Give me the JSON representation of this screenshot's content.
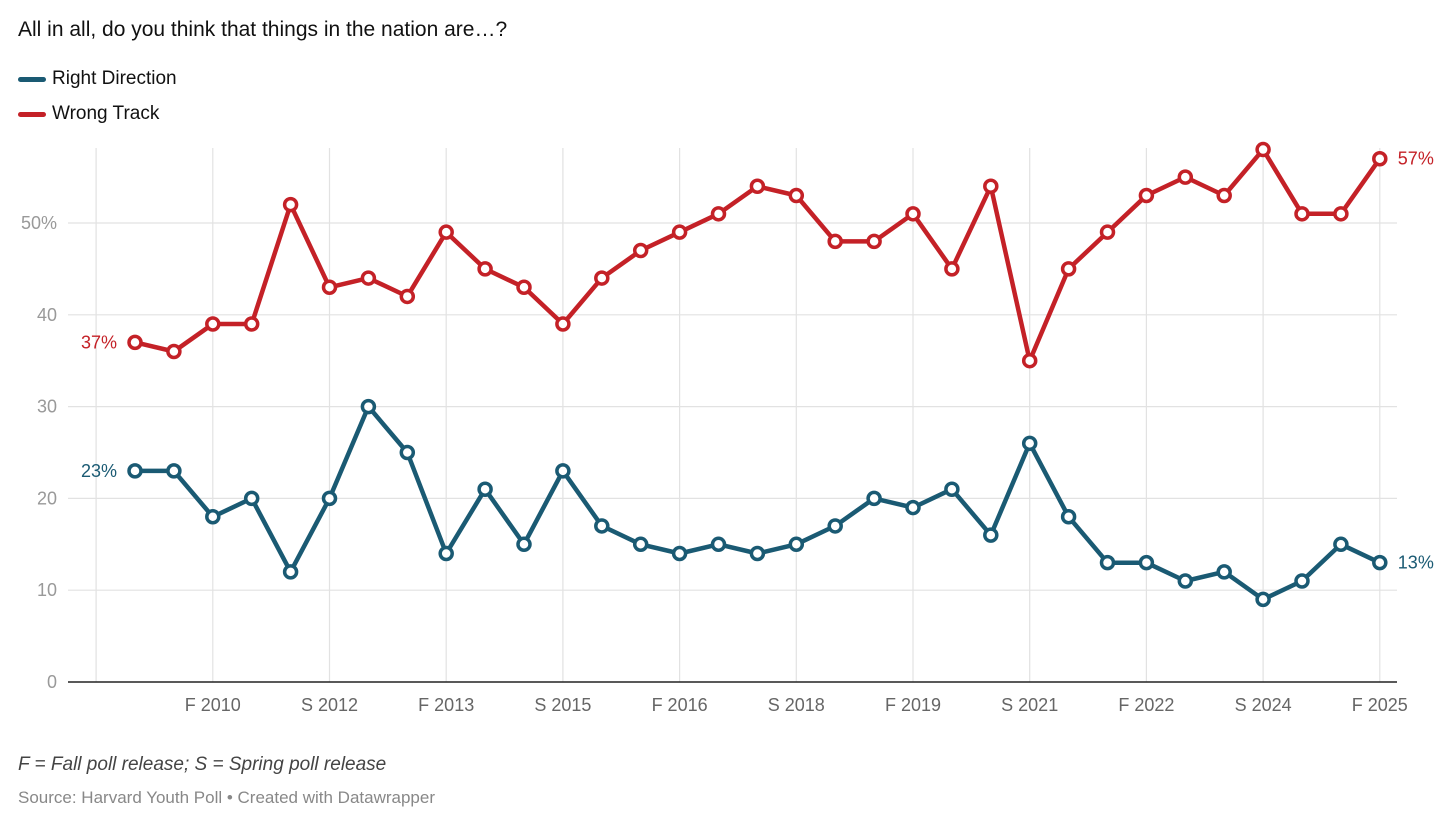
{
  "chart_data": {
    "type": "line",
    "title": "All in all, do you think that things in the nation are…?",
    "note": "F = Fall poll release; S = Spring poll release",
    "source": "Source: Harvard Youth Poll • Created with Datawrapper",
    "ylim": [
      0,
      58
    ],
    "yticks": [
      0,
      10,
      20,
      30,
      40,
      50
    ],
    "ytick_labels": [
      "0",
      "10",
      "20",
      "30",
      "40",
      "50%"
    ],
    "xticks": [
      {
        "label": "F 2010",
        "index": 2
      },
      {
        "label": "S 2012",
        "index": 5
      },
      {
        "label": "F 2013",
        "index": 8
      },
      {
        "label": "S 2015",
        "index": 11
      },
      {
        "label": "F 2016",
        "index": 14
      },
      {
        "label": "S 2018",
        "index": 17
      },
      {
        "label": "F 2019",
        "index": 20
      },
      {
        "label": "S 2021",
        "index": 23
      },
      {
        "label": "F 2022",
        "index": 26
      },
      {
        "label": "S 2024",
        "index": 29
      },
      {
        "label": "F 2025",
        "index": 32
      }
    ],
    "grid": true,
    "series": [
      {
        "name": "Right Direction",
        "color": "#1a5a73",
        "values": [
          23,
          23,
          18,
          20,
          12,
          20,
          30,
          25,
          14,
          21,
          15,
          23,
          17,
          15,
          14,
          15,
          14,
          15,
          17,
          20,
          19,
          21,
          16,
          26,
          18,
          13,
          13,
          11,
          12,
          9,
          11,
          15,
          13
        ],
        "start_label": "23%",
        "end_label": "13%"
      },
      {
        "name": "Wrong Track",
        "color": "#c42127",
        "values": [
          37,
          36,
          39,
          39,
          52,
          43,
          44,
          42,
          49,
          45,
          43,
          39,
          44,
          47,
          49,
          51,
          54,
          53,
          48,
          48,
          51,
          45,
          54,
          35,
          45,
          49,
          53,
          55,
          53,
          58,
          51,
          51,
          57
        ],
        "start_label": "37%",
        "end_label": "57%"
      }
    ]
  }
}
